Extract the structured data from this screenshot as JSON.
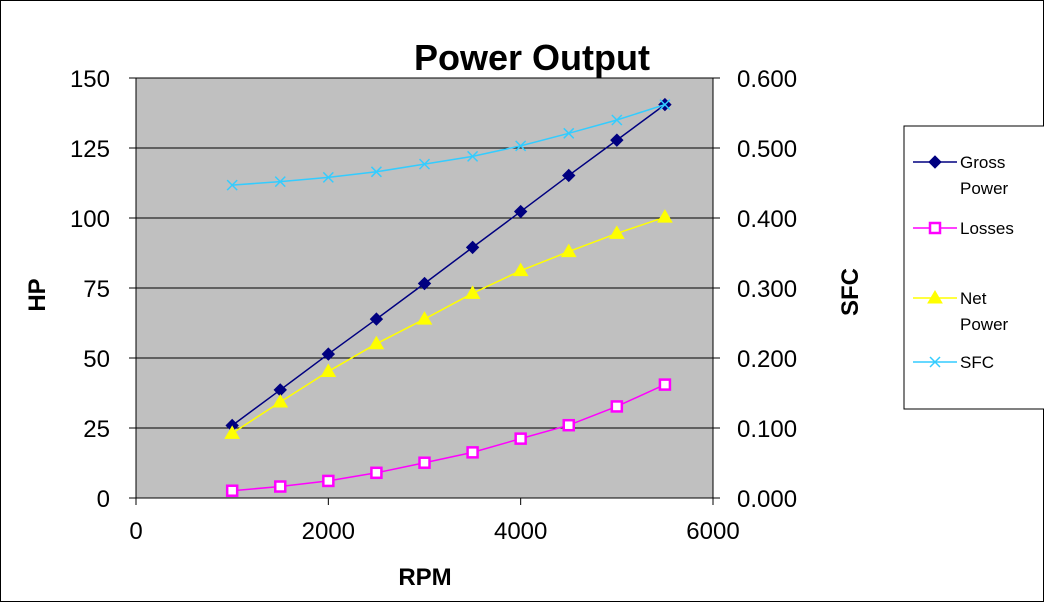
{
  "chart_data": {
    "type": "line",
    "title": "Power Output",
    "xlabel": "RPM",
    "ylabel": "HP",
    "y2label": "SFC",
    "xlim": [
      0,
      6000
    ],
    "ylim": [
      0,
      150
    ],
    "y2lim": [
      0,
      0.6
    ],
    "xticks": [
      "0",
      "2000",
      "4000",
      "6000"
    ],
    "yticks": [
      "0",
      "25",
      "50",
      "75",
      "100",
      "125",
      "150"
    ],
    "y2ticks": [
      "0.000",
      "0.100",
      "0.200",
      "0.300",
      "0.400",
      "0.500",
      "0.600"
    ],
    "grid": true,
    "plot_background": "#c0c0c0",
    "legend_position": "right",
    "x": [
      1000,
      1500,
      2000,
      2500,
      3000,
      3500,
      4000,
      4500,
      5000,
      5500
    ],
    "series": [
      {
        "name": "Gross Power",
        "axis": "left",
        "color": "#000080",
        "marker": "diamond",
        "values": [
          25.9,
          38.6,
          51.4,
          63.9,
          76.6,
          89.5,
          102.3,
          115.2,
          127.8,
          140.5
        ]
      },
      {
        "name": "Losses",
        "axis": "left",
        "color": "#ff00ff",
        "marker": "square",
        "values": [
          2.6,
          4.1,
          6.1,
          9.0,
          12.6,
          16.3,
          21.2,
          26.0,
          32.7,
          40.5
        ]
      },
      {
        "name": "Net Power",
        "axis": "left",
        "color": "#ffff00",
        "marker": "triangle",
        "values": [
          23.1,
          34.3,
          45.2,
          55.1,
          63.9,
          73.1,
          81.2,
          88.0,
          94.5,
          100.3
        ]
      },
      {
        "name": "SFC",
        "axis": "right",
        "color": "#33ccff",
        "marker": "x",
        "values": [
          0.447,
          0.452,
          0.458,
          0.466,
          0.477,
          0.488,
          0.503,
          0.521,
          0.54,
          0.562
        ]
      }
    ]
  }
}
